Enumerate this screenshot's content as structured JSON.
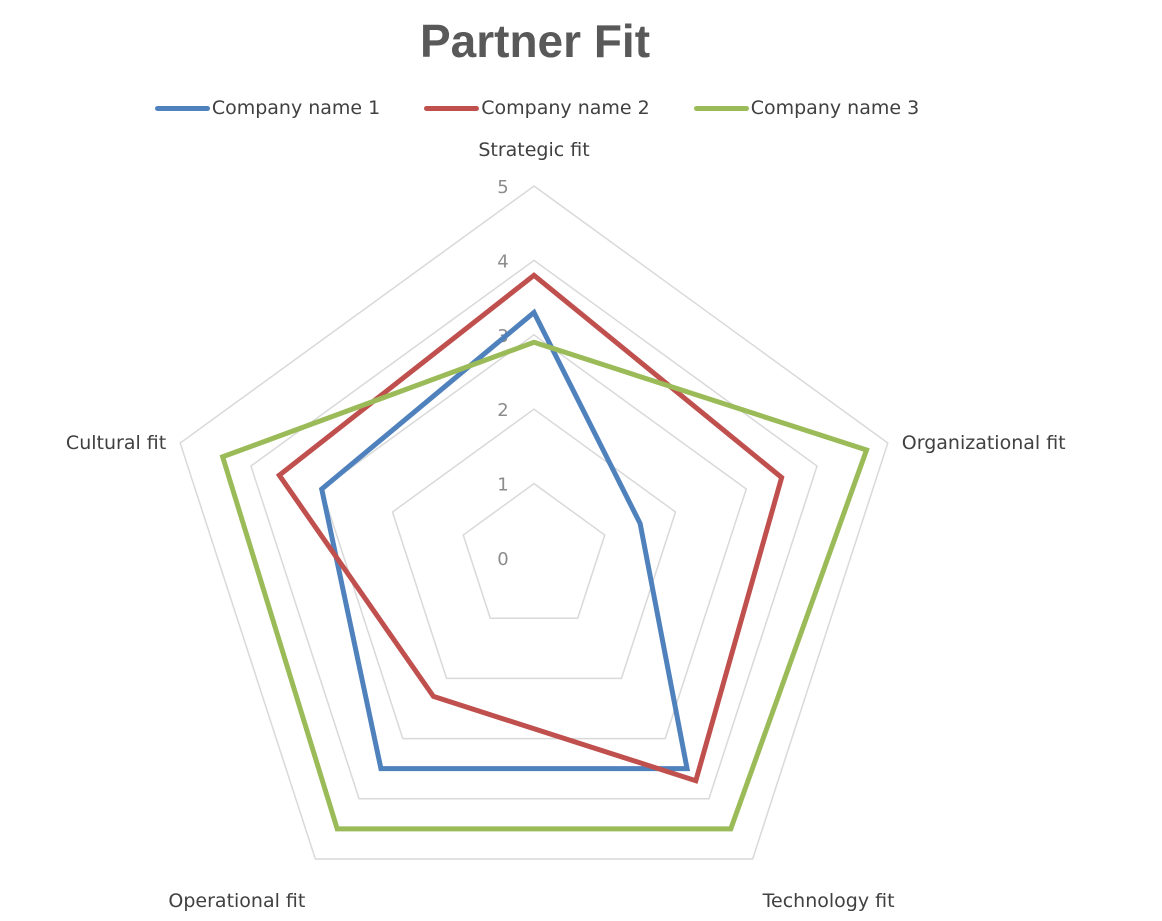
{
  "chart_data": {
    "type": "radar",
    "title": "Partner Fit",
    "axes": [
      "Strategic fit",
      "Organizational fit",
      "Technology fit",
      "Operational fit",
      "Cultural fit"
    ],
    "rlim": [
      0,
      5
    ],
    "ticks": [
      "0",
      "1",
      "2",
      "3",
      "4",
      "5"
    ],
    "grid": true,
    "legend_position": "top",
    "series": [
      {
        "name": "Company name 1",
        "color": "#4f81bd",
        "values": [
          3.3,
          1.5,
          3.5,
          3.5,
          3.0
        ]
      },
      {
        "name": "Company name 2",
        "color": "#c0504d",
        "values": [
          3.8,
          3.5,
          3.7,
          2.3,
          3.6
        ]
      },
      {
        "name": "Company name 3",
        "color": "#9bbb59",
        "values": [
          2.9,
          4.7,
          4.5,
          4.5,
          4.4
        ]
      }
    ]
  }
}
